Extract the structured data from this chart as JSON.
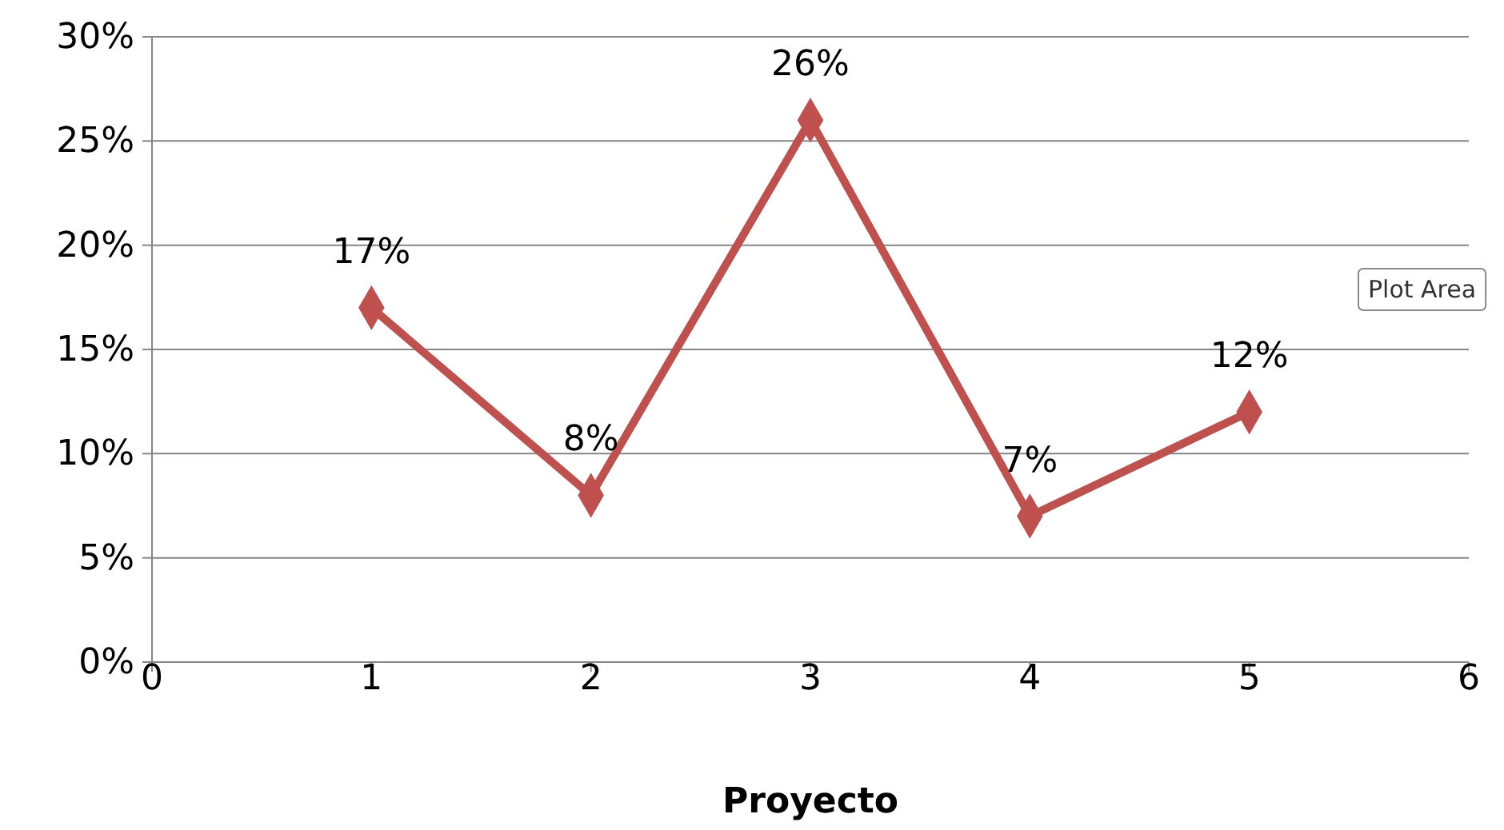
{
  "chart_data": {
    "type": "line",
    "xlabel": "Proyecto",
    "x": [
      1,
      2,
      3,
      4,
      5
    ],
    "series": [
      {
        "color": "#c0504d",
        "values": [
          17,
          8,
          26,
          7,
          12
        ],
        "value_labels": [
          "17%",
          "8%",
          "26%",
          "7%",
          "12%"
        ]
      }
    ],
    "xlim": [
      0,
      6
    ],
    "xticks": [
      0,
      1,
      2,
      3,
      4,
      5,
      6
    ],
    "ylim": [
      0,
      30
    ],
    "yticks": [
      {
        "value": 0,
        "label": "0%"
      },
      {
        "value": 5,
        "label": "5%"
      },
      {
        "value": 10,
        "label": "10%"
      },
      {
        "value": 15,
        "label": "15%"
      },
      {
        "value": 20,
        "label": "20%"
      },
      {
        "value": 25,
        "label": "25%"
      },
      {
        "value": 30,
        "label": "30%"
      }
    ],
    "grid": "y",
    "marker": "diamond",
    "line_style": "solid",
    "annotations": [
      "Plot Area"
    ]
  }
}
